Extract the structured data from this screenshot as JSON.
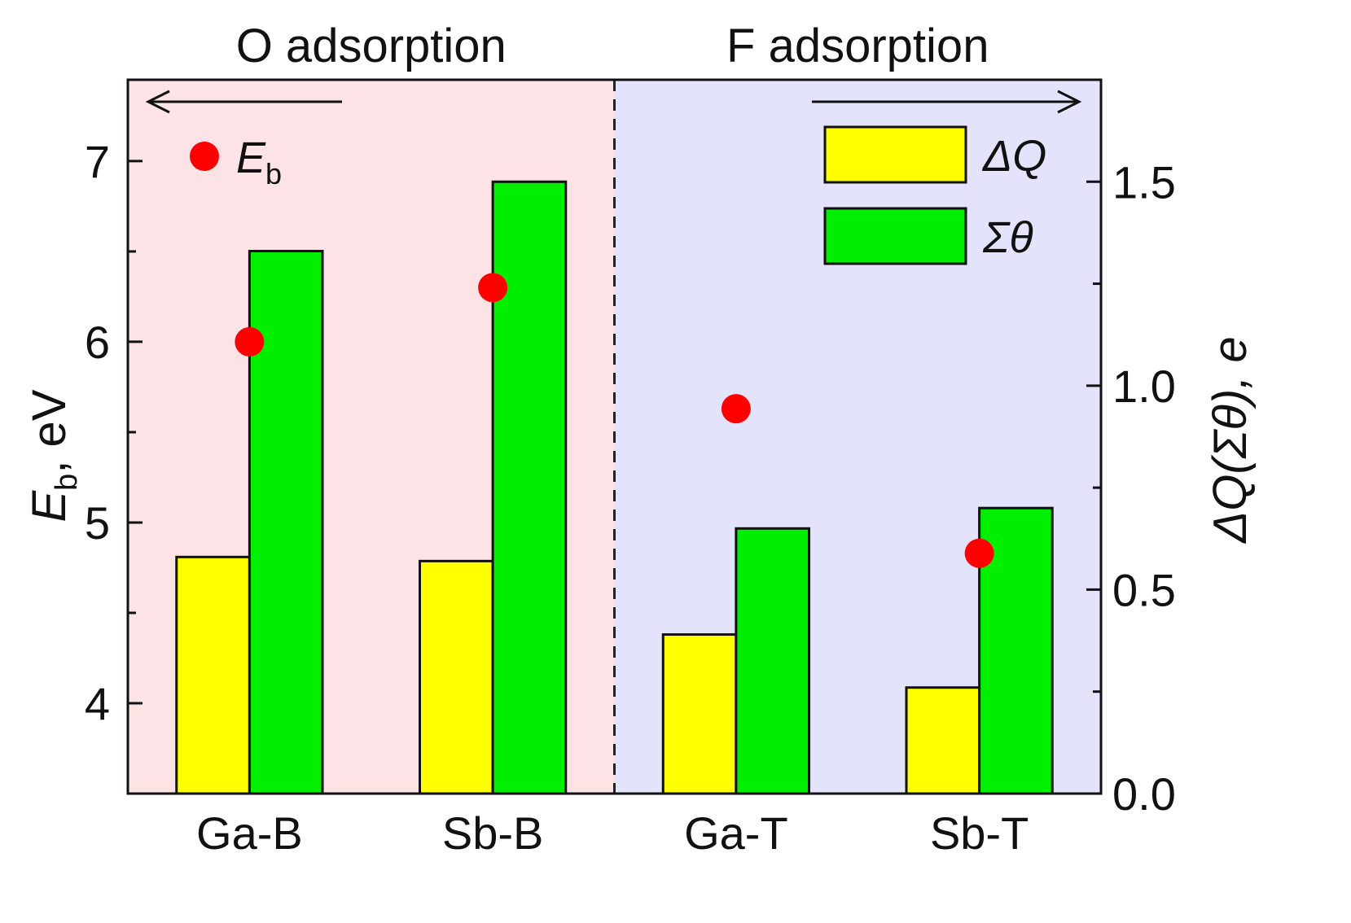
{
  "chart_data": {
    "type": "bar",
    "categories": [
      "Ga-B",
      "Sb-B",
      "Ga-T",
      "Sb-T"
    ],
    "regions": [
      {
        "label": "O adsorption",
        "categories": [
          "Ga-B",
          "Sb-B"
        ],
        "color": "#fde3e6"
      },
      {
        "label": "F adsorption",
        "categories": [
          "Ga-T",
          "Sb-T"
        ],
        "color": "#e3e3fb"
      }
    ],
    "series": [
      {
        "name": "ΔQ",
        "axis": "right",
        "color": "#ffff00",
        "values": [
          0.58,
          0.57,
          0.39,
          0.26
        ]
      },
      {
        "name": "Σθ",
        "axis": "right",
        "color": "#00ee00",
        "values": [
          1.33,
          1.5,
          0.65,
          0.7
        ]
      },
      {
        "name": "Eb",
        "axis": "left",
        "kind": "scatter",
        "color": "#ff0000",
        "values": [
          6.0,
          6.3,
          5.63,
          4.83
        ]
      }
    ],
    "y_left": {
      "label_main": "E",
      "label_sub": "b",
      "label_rest": ", eV",
      "ylim": [
        3.5,
        7.45
      ],
      "ticks": [
        4,
        5,
        6,
        7
      ],
      "tick_labels": [
        "4",
        "5",
        "6",
        "7"
      ],
      "minor_ticks": [
        4.5,
        5.5,
        6.5
      ]
    },
    "y_right": {
      "label": "ΔQ(Σθ), e",
      "ylim": [
        0.0,
        1.75
      ],
      "ticks": [
        0.0,
        0.5,
        1.0,
        1.5
      ],
      "tick_labels": [
        "0.0",
        "0.5",
        "1.0",
        "1.5"
      ],
      "minor_ticks": [
        0.25,
        0.75,
        1.25
      ]
    },
    "arrows": [
      {
        "points_to": "left axis"
      },
      {
        "points_to": "right axis"
      }
    ],
    "legend": {
      "right_entries": [
        "ΔQ",
        "Σθ"
      ],
      "left_entry": {
        "main": "E",
        "sub": "b"
      }
    }
  }
}
